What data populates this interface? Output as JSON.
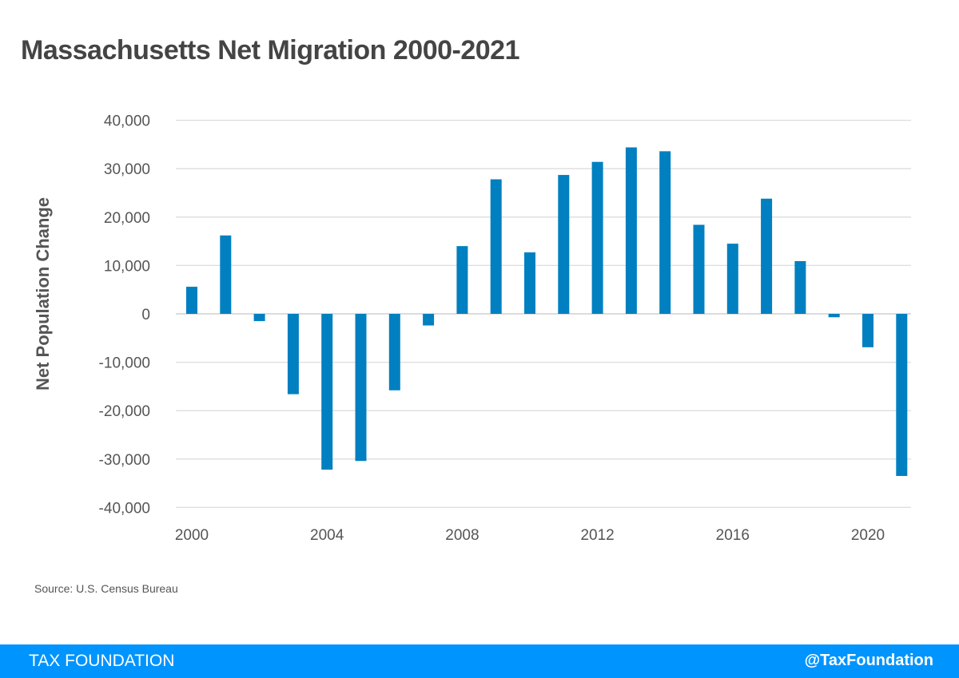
{
  "title": "Massachusetts Net Migration 2000-2021",
  "source": "Source: U.S. Census Bureau",
  "footer": {
    "brand": "TAX FOUNDATION",
    "handle": "@TaxFoundation"
  },
  "colors": {
    "bar": "#0080C0",
    "footer": "#0094FF",
    "grid": "#DDDDDD"
  },
  "chart_data": {
    "type": "bar",
    "title": "Massachusetts Net Migration 2000-2021",
    "xlabel": "",
    "ylabel": "Net Population Change",
    "ylim": [
      -40000,
      40000
    ],
    "yticks": [
      40000,
      30000,
      20000,
      10000,
      0,
      -10000,
      -20000,
      -30000,
      -40000
    ],
    "ytick_labels": [
      "40,000",
      "30,000",
      "20,000",
      "10,000",
      "0",
      "-10,000",
      "-20,000",
      "-30,000",
      "-40,000"
    ],
    "xtick_labels": [
      "2000",
      "2004",
      "2008",
      "2012",
      "2016",
      "2020"
    ],
    "grid": true,
    "categories": [
      2000,
      2001,
      2002,
      2003,
      2004,
      2005,
      2006,
      2007,
      2008,
      2009,
      2010,
      2011,
      2012,
      2013,
      2014,
      2015,
      2016,
      2017,
      2018,
      2019,
      2020,
      2021
    ],
    "values": [
      5600,
      16200,
      -1500,
      -16600,
      -32200,
      -30400,
      -15800,
      -2400,
      14000,
      27800,
      12700,
      28700,
      31400,
      34400,
      33600,
      18400,
      14500,
      23800,
      10900,
      -700,
      -6900,
      -33500
    ]
  }
}
